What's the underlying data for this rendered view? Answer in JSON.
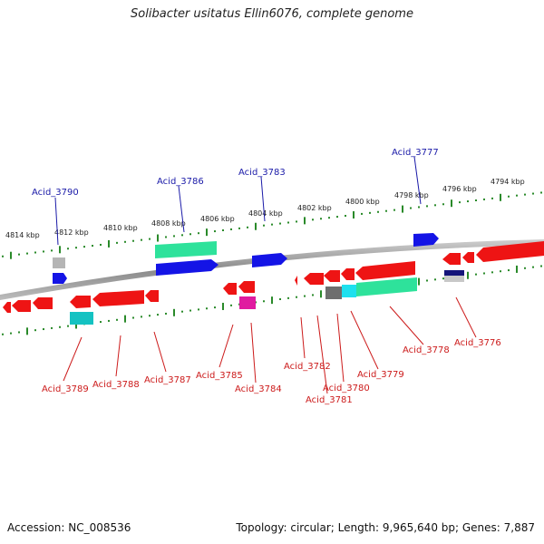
{
  "title": "Solibacter usitatus Ellin6076, complete genome",
  "accession": "Accession: NC_008536",
  "summary": "Topology: circular; Length: 9,965,640 bp; Genes: 7,887",
  "colors": {
    "forward_label": "#1a1aa8",
    "reverse_label": "#cc1a1a",
    "tick_marks": "#2a8a2a",
    "backbone": "#888888"
  },
  "kbp_labels": [
    "4814 kbp",
    "4812 kbp",
    "4810 kbp",
    "4808 kbp",
    "4806 kbp",
    "4804 kbp",
    "4802 kbp",
    "4800 kbp",
    "4798 kbp",
    "4796 kbp",
    "4794 kbp"
  ],
  "forward_gene_labels": [
    "Acid_3790",
    "Acid_3786",
    "Acid_3783",
    "Acid_3777"
  ],
  "reverse_gene_labels": [
    "Acid_3789",
    "Acid_3788",
    "Acid_3787",
    "Acid_3785",
    "Acid_3784",
    "Acid_3782",
    "Acid_3781",
    "Acid_3780",
    "Acid_3779",
    "Acid_3778",
    "Acid_3776"
  ]
}
